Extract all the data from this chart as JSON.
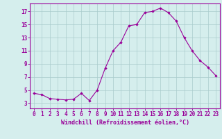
{
  "x": [
    0,
    1,
    2,
    3,
    4,
    5,
    6,
    7,
    8,
    9,
    10,
    11,
    12,
    13,
    14,
    15,
    16,
    17,
    18,
    19,
    20,
    21,
    22,
    23
  ],
  "y": [
    4.5,
    4.3,
    3.7,
    3.6,
    3.5,
    3.6,
    4.5,
    3.4,
    5.0,
    8.3,
    11.0,
    12.3,
    14.8,
    15.0,
    16.8,
    17.0,
    17.5,
    16.8,
    15.5,
    13.0,
    11.0,
    9.5,
    8.5,
    7.2
  ],
  "line_color": "#990099",
  "marker_color": "#990099",
  "bg_color": "#d5eeed",
  "grid_color": "#aacccc",
  "axis_color": "#990099",
  "xlabel": "Windchill (Refroidissement éolien,°C)",
  "xlabel_fontsize": 6.0,
  "tick_fontsize": 5.5,
  "ylabel_ticks": [
    3,
    5,
    7,
    9,
    11,
    13,
    15,
    17
  ],
  "ylim": [
    2.2,
    18.2
  ],
  "xlim": [
    -0.5,
    23.5
  ]
}
